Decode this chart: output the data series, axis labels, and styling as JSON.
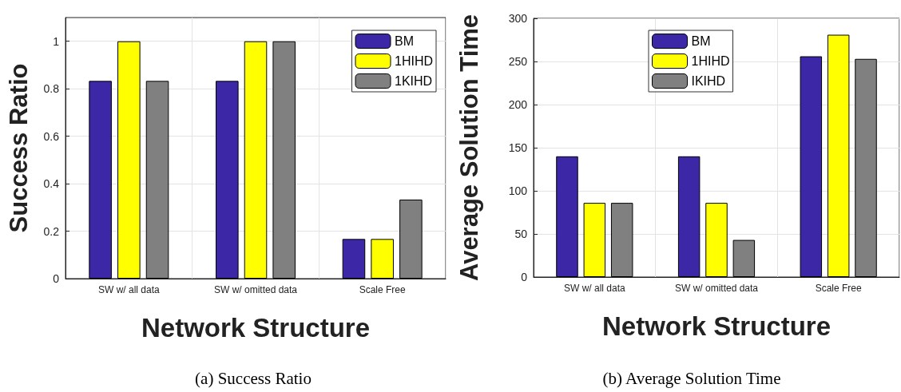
{
  "chart_data": [
    {
      "type": "bar",
      "ylabel": "Success Ratio",
      "xlabel": "Network Structure",
      "annotations": [
        "(a) Success Ratio"
      ],
      "categories": [
        "SW w/ all data",
        "SW w/ omitted data",
        "Scale Free"
      ],
      "series": [
        {
          "name": "BM",
          "color": "#3c27a6",
          "values": [
            0.833,
            0.833,
            0.167
          ]
        },
        {
          "name": "1HIHD",
          "color": "#ffff00",
          "values": [
            1,
            1,
            0.167
          ]
        },
        {
          "name": "1KIHD",
          "color": "#808080",
          "values": [
            0.833,
            1,
            0.333
          ]
        }
      ],
      "ylim": [
        0,
        1.1
      ],
      "yticks": [
        0,
        0.2,
        0.4,
        0.6,
        0.8,
        1
      ],
      "grid": true,
      "legend": "top right"
    },
    {
      "type": "bar",
      "ylabel": "Average Solution Time",
      "xlabel": "Network Structure",
      "annotations": [
        "(b) Average Solution Time"
      ],
      "categories": [
        "SW w/ all data",
        "SW w/ omitted data",
        "Scale Free"
      ],
      "series": [
        {
          "name": "BM",
          "color": "#3c27a6",
          "values": [
            140,
            140,
            256
          ]
        },
        {
          "name": "1HIHD",
          "color": "#ffff00",
          "values": [
            86,
            86,
            281
          ]
        },
        {
          "name": "IKIHD",
          "color": "#808080",
          "values": [
            86,
            43,
            253
          ]
        }
      ],
      "ylim": [
        0,
        300
      ],
      "yticks": [
        0,
        50,
        100,
        150,
        200,
        250,
        300
      ],
      "grid": true,
      "legend": "top"
    }
  ]
}
